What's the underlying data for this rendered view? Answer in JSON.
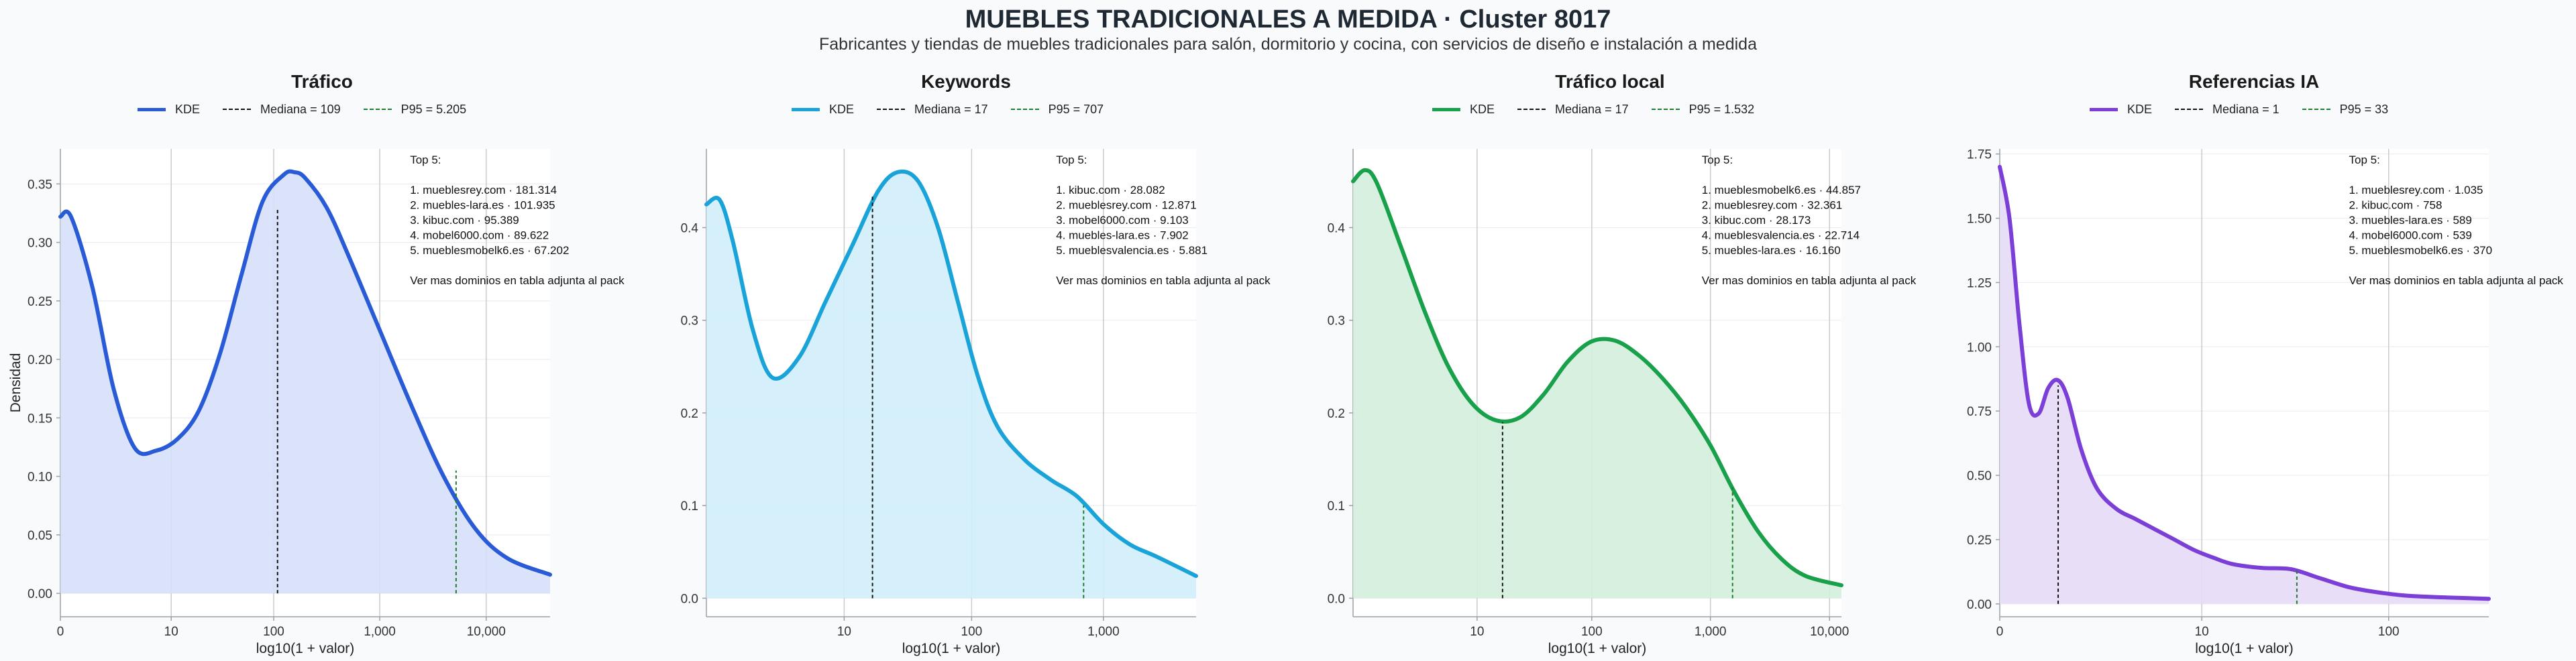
{
  "page": {
    "title": "MUEBLES TRADICIONALES A MEDIDA · Cluster 8017",
    "subtitle": "Fabricantes y tiendas de muebles tradicionales para salón, dormitorio y cocina, con servicios de diseño e instalación a medida"
  },
  "chart_data": [
    {
      "type": "area",
      "title": "Tráfico",
      "xlabel": "log10(1 + valor)",
      "ylabel": "Densidad",
      "color": "#2a5bd7",
      "fill": "#d6e0f8",
      "xlim": [
        0,
        4.6
      ],
      "ylim": [
        -0.02,
        0.38
      ],
      "xticks": [
        {
          "v": 0,
          "label": "0"
        },
        {
          "v": 1.041,
          "label": "10"
        },
        {
          "v": 2.004,
          "label": "100"
        },
        {
          "v": 3.0,
          "label": "1,000"
        },
        {
          "v": 4.0,
          "label": "10,000"
        }
      ],
      "yticks": [
        {
          "v": 0,
          "label": "0.00"
        },
        {
          "v": 0.05,
          "label": "0.05"
        },
        {
          "v": 0.1,
          "label": "0.10"
        },
        {
          "v": 0.15,
          "label": "0.15"
        },
        {
          "v": 0.2,
          "label": "0.20"
        },
        {
          "v": 0.25,
          "label": "0.25"
        },
        {
          "v": 0.3,
          "label": "0.30"
        },
        {
          "v": 0.35,
          "label": "0.35"
        }
      ],
      "series": [
        {
          "name": "KDE",
          "x": [
            0,
            0.1,
            0.3,
            0.5,
            0.7,
            0.9,
            1.1,
            1.3,
            1.5,
            1.7,
            1.9,
            2.1,
            2.2,
            2.3,
            2.5,
            2.7,
            3.0,
            3.3,
            3.6,
            3.9,
            4.2,
            4.6
          ],
          "y": [
            0.322,
            0.322,
            0.262,
            0.175,
            0.124,
            0.122,
            0.132,
            0.156,
            0.205,
            0.272,
            0.335,
            0.358,
            0.36,
            0.355,
            0.33,
            0.29,
            0.225,
            0.16,
            0.1,
            0.055,
            0.03,
            0.016
          ]
        }
      ],
      "median": {
        "x": 2.04,
        "y": 0.33
      },
      "p95": {
        "x": 3.717,
        "y": 0.105
      },
      "legend": {
        "kde": "KDE",
        "median": "Mediana = 109",
        "p95": "P95 = 5.205"
      },
      "annotation": [
        "Top 5:",
        "",
        "1. mueblesrey.com · 181.314",
        "2. muebles-lara.es · 101.935",
        "3. kibuc.com · 95.389",
        "4. mobel6000.com · 89.622",
        "5. mueblesmobelk6.es · 67.202",
        "",
        "Ver mas dominios en tabla adjunta al pack"
      ]
    },
    {
      "type": "area",
      "title": "Keywords",
      "xlabel": "log10(1 + valor)",
      "ylabel": "",
      "color": "#1aa3d8",
      "fill": "#d0eefa",
      "xlim": [
        0,
        3.7
      ],
      "ylim": [
        -0.02,
        0.485
      ],
      "xticks": [
        {
          "v": 1.041,
          "label": "10"
        },
        {
          "v": 2.004,
          "label": "100"
        },
        {
          "v": 3.0,
          "label": "1,000"
        }
      ],
      "yticks": [
        {
          "v": 0,
          "label": "0.0"
        },
        {
          "v": 0.1,
          "label": "0.1"
        },
        {
          "v": 0.2,
          "label": "0.2"
        },
        {
          "v": 0.3,
          "label": "0.3"
        },
        {
          "v": 0.4,
          "label": "0.4"
        }
      ],
      "series": [
        {
          "name": "KDE",
          "x": [
            0,
            0.1,
            0.2,
            0.35,
            0.5,
            0.7,
            0.9,
            1.1,
            1.3,
            1.45,
            1.6,
            1.75,
            1.9,
            2.05,
            2.2,
            2.4,
            2.6,
            2.8,
            3.0,
            3.2,
            3.4,
            3.7
          ],
          "y": [
            0.425,
            0.43,
            0.385,
            0.29,
            0.238,
            0.26,
            0.32,
            0.38,
            0.44,
            0.46,
            0.45,
            0.4,
            0.32,
            0.24,
            0.185,
            0.15,
            0.128,
            0.11,
            0.08,
            0.058,
            0.045,
            0.024
          ]
        }
      ],
      "median": {
        "x": 1.255,
        "y": 0.435
      },
      "p95": {
        "x": 2.85,
        "y": 0.1
      },
      "legend": {
        "kde": "KDE",
        "median": "Mediana = 17",
        "p95": "P95 = 707"
      },
      "annotation": [
        "Top 5:",
        "",
        "1. kibuc.com · 28.082",
        "2. mueblesrey.com · 12.871",
        "3. mobel6000.com · 9.103",
        "4. muebles-lara.es · 7.902",
        "5. mueblesvalencia.es · 5.881",
        "",
        "Ver mas dominios en tabla adjunta al pack"
      ]
    },
    {
      "type": "area",
      "title": "Tráfico local",
      "xlabel": "log10(1 + valor)",
      "ylabel": "",
      "color": "#18a04a",
      "fill": "#d4eedb",
      "xlim": [
        0,
        4.1
      ],
      "ylim": [
        -0.02,
        0.485
      ],
      "xticks": [
        {
          "v": 1.041,
          "label": "10"
        },
        {
          "v": 2.004,
          "label": "100"
        },
        {
          "v": 3.0,
          "label": "1,000"
        },
        {
          "v": 4.0,
          "label": "10,000"
        }
      ],
      "yticks": [
        {
          "v": 0,
          "label": "0.0"
        },
        {
          "v": 0.1,
          "label": "0.1"
        },
        {
          "v": 0.2,
          "label": "0.2"
        },
        {
          "v": 0.3,
          "label": "0.3"
        },
        {
          "v": 0.4,
          "label": "0.4"
        }
      ],
      "series": [
        {
          "name": "KDE",
          "x": [
            0,
            0.1,
            0.2,
            0.4,
            0.6,
            0.8,
            1.0,
            1.2,
            1.4,
            1.6,
            1.8,
            2.0,
            2.2,
            2.4,
            2.6,
            2.8,
            3.0,
            3.2,
            3.4,
            3.6,
            3.8,
            4.1
          ],
          "y": [
            0.45,
            0.462,
            0.448,
            0.38,
            0.31,
            0.25,
            0.21,
            0.192,
            0.195,
            0.22,
            0.255,
            0.277,
            0.278,
            0.262,
            0.237,
            0.205,
            0.165,
            0.115,
            0.072,
            0.042,
            0.024,
            0.014
          ]
        }
      ],
      "median": {
        "x": 1.255,
        "y": 0.19
      },
      "p95": {
        "x": 3.186,
        "y": 0.12
      },
      "legend": {
        "kde": "KDE",
        "median": "Mediana = 17",
        "p95": "P95 = 1.532"
      },
      "annotation": [
        "Top 5:",
        "",
        "1. mueblesmobelk6.es · 44.857",
        "2. mueblesrey.com · 32.361",
        "3. kibuc.com · 28.173",
        "4. mueblesvalencia.es · 22.714",
        "5. muebles-lara.es · 16.160",
        "",
        "Ver mas dominios en tabla adjunta al pack"
      ]
    },
    {
      "type": "area",
      "title": "Referencias IA",
      "xlabel": "log10(1 + valor)",
      "ylabel": "",
      "color": "#7b3fd8",
      "fill": "#e6daf7",
      "xlim": [
        0,
        2.52
      ],
      "ylim": [
        -0.05,
        1.77
      ],
      "xticks": [
        {
          "v": 0,
          "label": "0"
        },
        {
          "v": 1.041,
          "label": "10"
        },
        {
          "v": 2.004,
          "label": "100"
        }
      ],
      "yticks": [
        {
          "v": 0,
          "label": "0.00"
        },
        {
          "v": 0.25,
          "label": "0.25"
        },
        {
          "v": 0.5,
          "label": "0.50"
        },
        {
          "v": 0.75,
          "label": "0.75"
        },
        {
          "v": 1.0,
          "label": "1.00"
        },
        {
          "v": 1.25,
          "label": "1.25"
        },
        {
          "v": 1.5,
          "label": "1.50"
        },
        {
          "v": 1.75,
          "label": "1.75"
        }
      ],
      "series": [
        {
          "name": "KDE",
          "x": [
            0,
            0.05,
            0.1,
            0.15,
            0.2,
            0.25,
            0.3,
            0.35,
            0.42,
            0.5,
            0.6,
            0.7,
            0.8,
            0.9,
            1.0,
            1.1,
            1.2,
            1.35,
            1.5,
            1.65,
            1.8,
            1.95,
            2.1,
            2.3,
            2.52
          ],
          "y": [
            1.7,
            1.5,
            1.1,
            0.78,
            0.74,
            0.84,
            0.87,
            0.8,
            0.6,
            0.45,
            0.37,
            0.33,
            0.29,
            0.25,
            0.21,
            0.18,
            0.155,
            0.14,
            0.135,
            0.1,
            0.065,
            0.045,
            0.032,
            0.025,
            0.02
          ]
        }
      ],
      "median": {
        "x": 0.301,
        "y": 0.85
      },
      "p95": {
        "x": 1.531,
        "y": 0.14
      },
      "legend": {
        "kde": "KDE",
        "median": "Mediana = 1",
        "p95": "P95 = 33"
      },
      "annotation": [
        "Top 5:",
        "",
        "1. mueblesrey.com · 1.035",
        "2. kibuc.com · 758",
        "3. muebles-lara.es · 589",
        "4. mobel6000.com · 539",
        "5. mueblesmobelk6.es · 370",
        "",
        "Ver mas dominios en tabla adjunta al pack"
      ]
    }
  ]
}
